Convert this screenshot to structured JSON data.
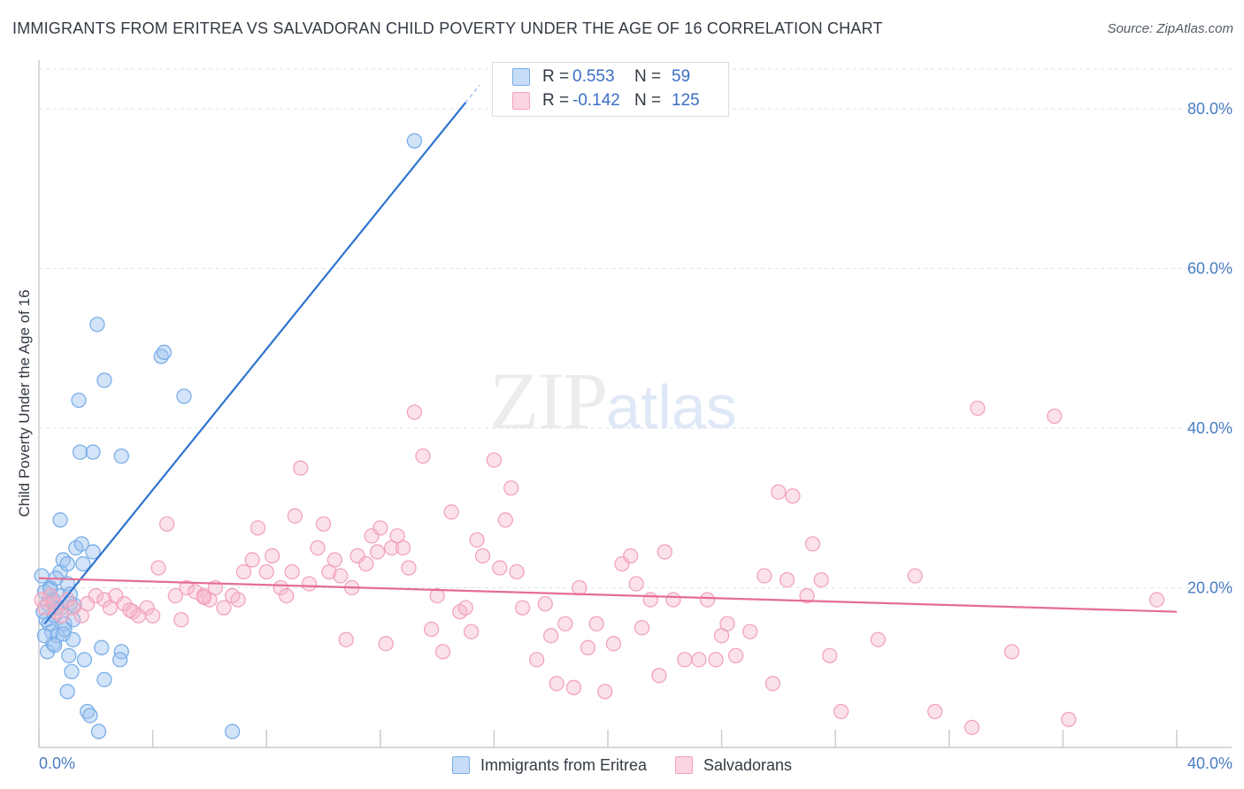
{
  "title": "IMMIGRANTS FROM ERITREA VS SALVADORAN CHILD POVERTY UNDER THE AGE OF 16 CORRELATION CHART",
  "source": "Source: ZipAtlas.com",
  "watermark": {
    "zip": "ZIP",
    "atlas": "atlas"
  },
  "legend": {
    "rows": [
      {
        "r_label": "R =",
        "r_value": "0.553",
        "n_label": "N =",
        "n_value": "59",
        "color": "#9ec3ef"
      },
      {
        "r_label": "R =",
        "r_value": "-0.142",
        "n_label": "N =",
        "n_value": "125",
        "color": "#f6b7c9"
      }
    ]
  },
  "bottom_legend": [
    {
      "label": "Immigrants from Eritrea",
      "color": "#9ec3ef"
    },
    {
      "label": "Salvadorans",
      "color": "#f6b7c9"
    }
  ],
  "chart_data": {
    "type": "scatter",
    "ylabel": "Child Poverty Under the Age of 16",
    "xlim": [
      0,
      40
    ],
    "ylim": [
      0,
      85
    ],
    "x_tick_labels": [
      "0.0%",
      "40.0%"
    ],
    "y_ticks": [
      20,
      40,
      60,
      80
    ],
    "y_tick_labels": [
      "20.0%",
      "40.0%",
      "60.0%",
      "80.0%"
    ],
    "grid": true,
    "series": [
      {
        "name": "Immigrants from Eritrea",
        "color": "#7aaee8",
        "trend": {
          "x0": 0.2,
          "y0": 15.5,
          "x1": 15.5,
          "y1": 83.0,
          "solid_until_x": 15.0
        },
        "points": [
          [
            0.1,
            21.5
          ],
          [
            0.2,
            19.5
          ],
          [
            0.3,
            18.0
          ],
          [
            0.15,
            17.0
          ],
          [
            0.25,
            16.0
          ],
          [
            0.4,
            20.0
          ],
          [
            0.5,
            18.5
          ],
          [
            0.6,
            17.5
          ],
          [
            0.35,
            15.5
          ],
          [
            0.45,
            14.5
          ],
          [
            0.55,
            16.5
          ],
          [
            0.7,
            19.0
          ],
          [
            0.8,
            17.5
          ],
          [
            0.9,
            15.5
          ],
          [
            1.0,
            20.5
          ],
          [
            1.1,
            18.0
          ],
          [
            1.2,
            16.0
          ],
          [
            0.3,
            12.0
          ],
          [
            0.5,
            13.0
          ],
          [
            0.65,
            14.0
          ],
          [
            0.75,
            22.0
          ],
          [
            0.85,
            23.5
          ],
          [
            1.0,
            23.0
          ],
          [
            1.3,
            25.0
          ],
          [
            1.5,
            25.5
          ],
          [
            1.55,
            23.0
          ],
          [
            1.9,
            24.5
          ],
          [
            0.75,
            28.5
          ],
          [
            1.2,
            13.5
          ],
          [
            1.05,
            11.5
          ],
          [
            1.15,
            9.5
          ],
          [
            1.0,
            7.0
          ],
          [
            1.6,
            11.0
          ],
          [
            1.7,
            4.5
          ],
          [
            1.8,
            4.0
          ],
          [
            2.1,
            2.0
          ],
          [
            2.3,
            8.5
          ],
          [
            2.2,
            12.5
          ],
          [
            2.9,
            12.0
          ],
          [
            2.85,
            11.0
          ],
          [
            1.4,
            43.5
          ],
          [
            1.45,
            37.0
          ],
          [
            1.9,
            37.0
          ],
          [
            2.3,
            46.0
          ],
          [
            2.05,
            53.0
          ],
          [
            2.9,
            36.5
          ],
          [
            4.3,
            49.0
          ],
          [
            4.4,
            49.5
          ],
          [
            5.1,
            44.0
          ],
          [
            6.8,
            2.0
          ],
          [
            13.2,
            76.0
          ],
          [
            0.2,
            14.0
          ],
          [
            0.4,
            19.8
          ],
          [
            0.6,
            21.2
          ],
          [
            0.9,
            14.8
          ],
          [
            1.25,
            17.8
          ],
          [
            0.55,
            12.8
          ],
          [
            0.85,
            14.2
          ],
          [
            1.1,
            19.2
          ]
        ]
      },
      {
        "name": "Salvadorans",
        "color": "#f2a3bd",
        "trend": {
          "x0": 0.0,
          "y0": 21.2,
          "x1": 40.0,
          "y1": 17.0
        },
        "points": [
          [
            0.1,
            18.5
          ],
          [
            0.2,
            17.5
          ],
          [
            0.4,
            19.0
          ],
          [
            0.5,
            18.0
          ],
          [
            0.6,
            17.0
          ],
          [
            0.8,
            16.5
          ],
          [
            1.0,
            18.5
          ],
          [
            1.2,
            17.5
          ],
          [
            1.5,
            16.5
          ],
          [
            1.7,
            18.0
          ],
          [
            2.0,
            19.0
          ],
          [
            2.3,
            18.5
          ],
          [
            2.5,
            17.5
          ],
          [
            2.7,
            19.0
          ],
          [
            3.0,
            18.0
          ],
          [
            3.3,
            17.0
          ],
          [
            3.5,
            16.5
          ],
          [
            3.8,
            17.5
          ],
          [
            4.0,
            16.5
          ],
          [
            4.2,
            22.5
          ],
          [
            4.5,
            28.0
          ],
          [
            4.8,
            19.0
          ],
          [
            5.0,
            16.0
          ],
          [
            5.2,
            20.0
          ],
          [
            5.5,
            19.5
          ],
          [
            5.8,
            19.0
          ],
          [
            6.0,
            18.5
          ],
          [
            6.2,
            20.0
          ],
          [
            6.5,
            17.5
          ],
          [
            6.8,
            19.0
          ],
          [
            7.0,
            18.5
          ],
          [
            7.2,
            22.0
          ],
          [
            7.5,
            23.5
          ],
          [
            7.7,
            27.5
          ],
          [
            8.0,
            22.0
          ],
          [
            8.2,
            24.0
          ],
          [
            8.5,
            20.0
          ],
          [
            8.7,
            19.0
          ],
          [
            8.9,
            22.0
          ],
          [
            9.0,
            29.0
          ],
          [
            9.2,
            35.0
          ],
          [
            9.5,
            20.5
          ],
          [
            9.8,
            25.0
          ],
          [
            10.0,
            28.0
          ],
          [
            10.2,
            22.0
          ],
          [
            10.4,
            23.5
          ],
          [
            10.6,
            21.5
          ],
          [
            10.8,
            13.5
          ],
          [
            11.0,
            20.0
          ],
          [
            11.2,
            24.0
          ],
          [
            11.5,
            23.0
          ],
          [
            11.7,
            26.5
          ],
          [
            11.9,
            24.5
          ],
          [
            12.0,
            27.5
          ],
          [
            12.2,
            13.0
          ],
          [
            12.4,
            25.0
          ],
          [
            12.6,
            26.5
          ],
          [
            12.8,
            25.0
          ],
          [
            13.0,
            22.5
          ],
          [
            13.2,
            42.0
          ],
          [
            13.5,
            36.5
          ],
          [
            13.8,
            14.8
          ],
          [
            14.0,
            19.0
          ],
          [
            14.2,
            12.0
          ],
          [
            14.5,
            29.5
          ],
          [
            14.8,
            17.0
          ],
          [
            15.0,
            17.5
          ],
          [
            15.2,
            14.5
          ],
          [
            15.4,
            26.0
          ],
          [
            15.6,
            24.0
          ],
          [
            16.0,
            36.0
          ],
          [
            16.2,
            22.5
          ],
          [
            16.4,
            28.5
          ],
          [
            16.6,
            32.5
          ],
          [
            16.8,
            22.0
          ],
          [
            17.0,
            17.5
          ],
          [
            17.5,
            11.0
          ],
          [
            17.8,
            18.0
          ],
          [
            18.0,
            14.0
          ],
          [
            18.2,
            8.0
          ],
          [
            18.5,
            15.5
          ],
          [
            18.8,
            7.5
          ],
          [
            19.0,
            20.0
          ],
          [
            19.3,
            12.5
          ],
          [
            19.6,
            15.5
          ],
          [
            19.9,
            7.0
          ],
          [
            20.2,
            13.0
          ],
          [
            20.5,
            23.0
          ],
          [
            20.8,
            24.0
          ],
          [
            21.0,
            20.5
          ],
          [
            21.2,
            15.0
          ],
          [
            21.5,
            18.5
          ],
          [
            21.8,
            9.0
          ],
          [
            22.0,
            24.5
          ],
          [
            22.3,
            18.5
          ],
          [
            22.7,
            11.0
          ],
          [
            23.2,
            11.0
          ],
          [
            23.5,
            18.5
          ],
          [
            23.8,
            11.0
          ],
          [
            24.0,
            14.0
          ],
          [
            24.2,
            15.5
          ],
          [
            24.5,
            11.5
          ],
          [
            25.0,
            14.5
          ],
          [
            25.5,
            21.5
          ],
          [
            25.8,
            8.0
          ],
          [
            26.0,
            32.0
          ],
          [
            26.3,
            21.0
          ],
          [
            26.5,
            31.5
          ],
          [
            27.0,
            19.0
          ],
          [
            27.2,
            25.5
          ],
          [
            27.5,
            21.0
          ],
          [
            27.8,
            11.5
          ],
          [
            28.2,
            4.5
          ],
          [
            29.5,
            13.5
          ],
          [
            30.8,
            21.5
          ],
          [
            31.5,
            4.5
          ],
          [
            32.8,
            2.5
          ],
          [
            33.0,
            42.5
          ],
          [
            34.2,
            12.0
          ],
          [
            35.7,
            41.5
          ],
          [
            36.2,
            3.5
          ],
          [
            39.3,
            18.5
          ],
          [
            5.8,
            18.8
          ],
          [
            3.2,
            17.2
          ]
        ]
      }
    ]
  }
}
